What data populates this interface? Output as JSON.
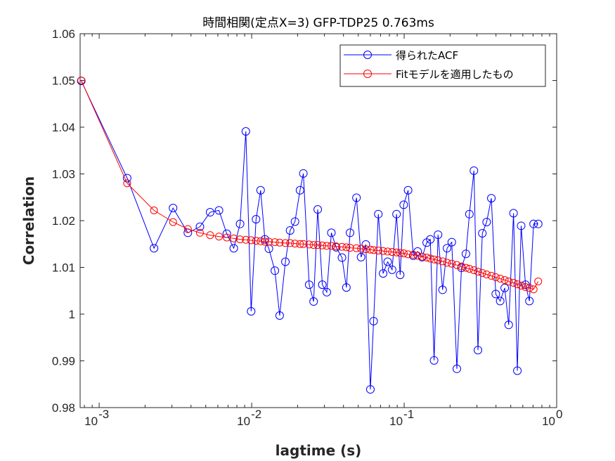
{
  "chart_data": {
    "type": "line",
    "title": "時間相関(定点X=3) GFP-TDP25 0.763ms",
    "xlabel": "lagtime (s)",
    "ylabel": "Correlation",
    "xscale": "log",
    "xlim": [
      0.00075,
      1.0
    ],
    "ylim": [
      0.98,
      1.06
    ],
    "grid": false,
    "legend_position": "top-right",
    "x_ticks": [
      {
        "value": 0.001,
        "base": "10",
        "exp": "-3"
      },
      {
        "value": 0.01,
        "base": "10",
        "exp": "-2"
      },
      {
        "value": 0.1,
        "base": "10",
        "exp": "-1"
      },
      {
        "value": 1,
        "base": "10",
        "exp": "0"
      }
    ],
    "y_ticks": [
      {
        "value": 0.98,
        "label": "0.98"
      },
      {
        "value": 0.99,
        "label": "0.99"
      },
      {
        "value": 1.0,
        "label": "1"
      },
      {
        "value": 1.01,
        "label": "1.01"
      },
      {
        "value": 1.02,
        "label": "1.02"
      },
      {
        "value": 1.03,
        "label": "1.03"
      },
      {
        "value": 1.04,
        "label": "1.04"
      },
      {
        "value": 1.05,
        "label": "1.05"
      },
      {
        "value": 1.06,
        "label": "1.06"
      }
    ],
    "series": [
      {
        "name": "得られたACF",
        "color": "#0000ff",
        "marker": "circle",
        "x": [
          0.000763,
          0.001526,
          0.002289,
          0.003052,
          0.003815,
          0.004578,
          0.005341,
          0.006104,
          0.006867,
          0.00763,
          0.008393,
          0.009156,
          0.009919,
          0.010682,
          0.011445,
          0.012208,
          0.012971,
          0.01419,
          0.01526,
          0.01664,
          0.01786,
          0.01923,
          0.02075,
          0.02182,
          0.02383,
          0.02548,
          0.02711,
          0.02906,
          0.03109,
          0.03331,
          0.03582,
          0.0391,
          0.04179,
          0.04416,
          0.04867,
          0.05215,
          0.05606,
          0.06005,
          0.06304,
          0.06768,
          0.07276,
          0.07794,
          0.08334,
          0.08912,
          0.09411,
          0.09929,
          0.1061,
          0.1147,
          0.1226,
          0.1312,
          0.1405,
          0.1484,
          0.1571,
          0.1668,
          0.1786,
          0.1911,
          0.2052,
          0.2216,
          0.2376,
          0.2542,
          0.2678,
          0.2867,
          0.3047,
          0.3255,
          0.3474,
          0.3729,
          0.3986,
          0.4262,
          0.4564,
          0.4847,
          0.5214,
          0.5524,
          0.5849,
          0.6246,
          0.6626,
          0.7059,
          0.7568
        ],
        "y": [
          1.0499,
          1.0291,
          1.0141,
          1.0227,
          1.0174,
          1.0187,
          1.0218,
          1.0222,
          1.0172,
          1.0141,
          1.0193,
          1.0391,
          1.0006,
          1.0203,
          1.0265,
          1.016,
          1.014,
          1.0093,
          0.9997,
          1.0112,
          1.0179,
          1.0198,
          1.0265,
          1.0301,
          1.0063,
          1.0027,
          1.0224,
          1.0063,
          1.0047,
          1.0174,
          1.0143,
          1.0121,
          1.0057,
          1.0174,
          1.0249,
          1.0122,
          1.0149,
          0.9839,
          0.9985,
          1.0214,
          1.0087,
          1.0112,
          1.0095,
          1.0214,
          1.0084,
          1.0234,
          1.0265,
          1.0125,
          1.0134,
          1.0122,
          1.0153,
          1.016,
          0.9901,
          1.017,
          1.0052,
          1.0141,
          1.0154,
          0.9883,
          1.0099,
          1.0129,
          1.0214,
          1.0307,
          0.9923,
          1.0173,
          1.0197,
          1.0248,
          1.0043,
          1.0028,
          1.0056,
          0.9977,
          1.0216,
          0.9879,
          1.0189,
          1.0063,
          1.0028,
          1.0193,
          1.0193
        ]
      },
      {
        "name": "Fitモデルを適用したもの",
        "color": "#ff0000",
        "marker": "circle",
        "x": [
          0.000763,
          0.001526,
          0.002289,
          0.003052,
          0.003815,
          0.004578,
          0.005341,
          0.006104,
          0.006867,
          0.00763,
          0.008393,
          0.009156,
          0.009919,
          0.010682,
          0.011445,
          0.012208,
          0.012971,
          0.01419,
          0.01526,
          0.01664,
          0.01786,
          0.01923,
          0.02075,
          0.02182,
          0.02383,
          0.02548,
          0.02711,
          0.02906,
          0.03109,
          0.03331,
          0.03582,
          0.0391,
          0.04179,
          0.04416,
          0.04867,
          0.05215,
          0.05606,
          0.06005,
          0.06304,
          0.06768,
          0.07276,
          0.07794,
          0.08334,
          0.08912,
          0.09411,
          0.09929,
          0.1061,
          0.1147,
          0.1226,
          0.1312,
          0.1405,
          0.1484,
          0.1571,
          0.1668,
          0.1786,
          0.1911,
          0.2052,
          0.2216,
          0.2376,
          0.2542,
          0.2678,
          0.2867,
          0.3047,
          0.3255,
          0.3474,
          0.3729,
          0.3986,
          0.4262,
          0.4564,
          0.4847,
          0.5214,
          0.5524,
          0.5849,
          0.6246,
          0.6626,
          0.7059,
          0.7568
        ],
        "y": [
          1.05,
          1.028,
          1.0222,
          1.0197,
          1.0182,
          1.0174,
          1.0169,
          1.0166,
          1.0164,
          1.0162,
          1.016,
          1.0159,
          1.0158,
          1.0157,
          1.0156,
          1.0155,
          1.0155,
          1.0154,
          1.0153,
          1.0152,
          1.0152,
          1.0151,
          1.015,
          1.015,
          1.0149,
          1.0148,
          1.0148,
          1.0147,
          1.0146,
          1.0146,
          1.0145,
          1.0144,
          1.0143,
          1.0142,
          1.0141,
          1.014,
          1.0139,
          1.0138,
          1.0137,
          1.0136,
          1.0135,
          1.0134,
          1.0133,
          1.0132,
          1.0131,
          1.013,
          1.0128,
          1.0127,
          1.0125,
          1.0123,
          1.0121,
          1.0119,
          1.0117,
          1.0115,
          1.0113,
          1.011,
          1.0108,
          1.0105,
          1.0102,
          1.0099,
          1.0097,
          1.0094,
          1.0091,
          1.0088,
          1.0085,
          1.0082,
          1.0079,
          1.0076,
          1.0073,
          1.007,
          1.0067,
          1.0064,
          1.0061,
          1.0058,
          1.0056,
          1.0053,
          1.007
        ]
      }
    ]
  }
}
